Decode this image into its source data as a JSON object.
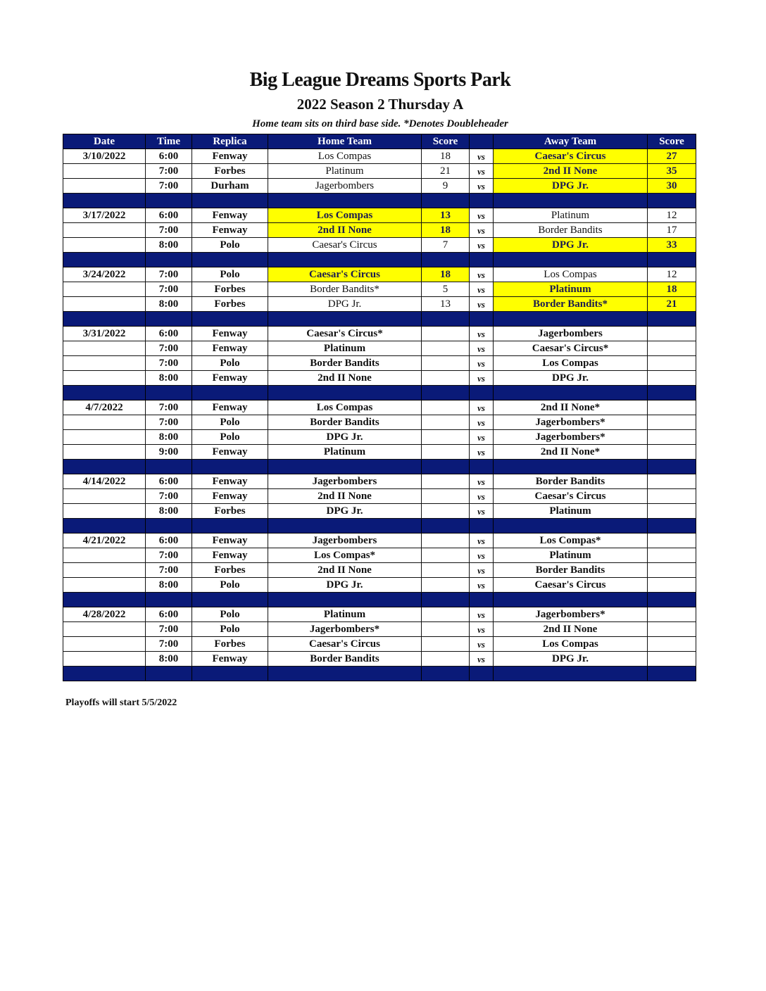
{
  "title": "Big League Dreams Sports Park",
  "subtitle": "2022 Season 2 Thursday A",
  "note": "Home team sits on third base side.  *Denotes Doubleheader",
  "headers": [
    "Date",
    "Time",
    "Replica",
    "Home Team",
    "Score",
    "",
    "Away Team",
    "Score"
  ],
  "vs_label": "vs",
  "highlight_color": "#ffff00",
  "header_color": "#0a1a78",
  "weeks": [
    {
      "date": "3/10/2022",
      "games": [
        {
          "time": "6:00",
          "field": "Fenway",
          "home": "Los Compas",
          "home_score": "18",
          "away": "Caesar's Circus",
          "away_score": "27",
          "winner": "away"
        },
        {
          "time": "7:00",
          "field": "Forbes",
          "home": "Platinum",
          "home_score": "21",
          "away": "2nd II None",
          "away_score": "35",
          "winner": "away"
        },
        {
          "time": "7:00",
          "field": "Durham",
          "home": "Jagerbombers",
          "home_score": "9",
          "away": "DPG Jr.",
          "away_score": "30",
          "winner": "away"
        }
      ]
    },
    {
      "date": "3/17/2022",
      "games": [
        {
          "time": "6:00",
          "field": "Fenway",
          "home": "Los Compas",
          "home_score": "13",
          "away": "Platinum",
          "away_score": "12",
          "winner": "home"
        },
        {
          "time": "7:00",
          "field": "Fenway",
          "home": "2nd II None",
          "home_score": "18",
          "away": "Border Bandits",
          "away_score": "17",
          "winner": "home"
        },
        {
          "time": "8:00",
          "field": "Polo",
          "home": "Caesar's Circus",
          "home_score": "7",
          "away": "DPG Jr.",
          "away_score": "33",
          "winner": "away"
        }
      ]
    },
    {
      "date": "3/24/2022",
      "games": [
        {
          "time": "7:00",
          "field": "Polo",
          "home": "Caesar's Circus",
          "home_score": "18",
          "away": "Los Compas",
          "away_score": "12",
          "winner": "home"
        },
        {
          "time": "7:00",
          "field": "Forbes",
          "home": "Border Bandits*",
          "home_score": "5",
          "away": "Platinum",
          "away_score": "18",
          "winner": "away"
        },
        {
          "time": "8:00",
          "field": "Forbes",
          "home": "DPG Jr.",
          "home_score": "13",
          "away": "Border Bandits*",
          "away_score": "21",
          "winner": "away"
        }
      ]
    },
    {
      "date": "3/31/2022",
      "games": [
        {
          "time": "6:00",
          "field": "Fenway",
          "home": "Caesar's Circus*",
          "home_score": "",
          "away": "Jagerbombers",
          "away_score": "",
          "winner": null
        },
        {
          "time": "7:00",
          "field": "Fenway",
          "home": "Platinum",
          "home_score": "",
          "away": "Caesar's Circus*",
          "away_score": "",
          "winner": null
        },
        {
          "time": "7:00",
          "field": "Polo",
          "home": "Border Bandits",
          "home_score": "",
          "away": "Los Compas",
          "away_score": "",
          "winner": null
        },
        {
          "time": "8:00",
          "field": "Fenway",
          "home": "2nd II None",
          "home_score": "",
          "away": "DPG Jr.",
          "away_score": "",
          "winner": null
        }
      ]
    },
    {
      "date": "4/7/2022",
      "games": [
        {
          "time": "7:00",
          "field": "Fenway",
          "home": "Los Compas",
          "home_score": "",
          "away": "2nd II None*",
          "away_score": "",
          "winner": null
        },
        {
          "time": "7:00",
          "field": "Polo",
          "home": "Border Bandits",
          "home_score": "",
          "away": "Jagerbombers*",
          "away_score": "",
          "winner": null
        },
        {
          "time": "8:00",
          "field": "Polo",
          "home": "DPG Jr.",
          "home_score": "",
          "away": "Jagerbombers*",
          "away_score": "",
          "winner": null
        },
        {
          "time": "9:00",
          "field": "Fenway",
          "home": "Platinum",
          "home_score": "",
          "away": "2nd II None*",
          "away_score": "",
          "winner": null
        }
      ]
    },
    {
      "date": "4/14/2022",
      "games": [
        {
          "time": "6:00",
          "field": "Fenway",
          "home": "Jagerbombers",
          "home_score": "",
          "away": "Border Bandits",
          "away_score": "",
          "winner": null
        },
        {
          "time": "7:00",
          "field": "Fenway",
          "home": "2nd II None",
          "home_score": "",
          "away": "Caesar's Circus",
          "away_score": "",
          "winner": null
        },
        {
          "time": "8:00",
          "field": "Forbes",
          "home": "DPG Jr.",
          "home_score": "",
          "away": "Platinum",
          "away_score": "",
          "winner": null
        }
      ]
    },
    {
      "date": "4/21/2022",
      "games": [
        {
          "time": "6:00",
          "field": "Fenway",
          "home": "Jagerbombers",
          "home_score": "",
          "away": "Los Compas*",
          "away_score": "",
          "winner": null
        },
        {
          "time": "7:00",
          "field": "Fenway",
          "home": "Los Compas*",
          "home_score": "",
          "away": "Platinum",
          "away_score": "",
          "winner": null
        },
        {
          "time": "7:00",
          "field": "Forbes",
          "home": "2nd II None",
          "home_score": "",
          "away": "Border Bandits",
          "away_score": "",
          "winner": null
        },
        {
          "time": "8:00",
          "field": "Polo",
          "home": "DPG Jr.",
          "home_score": "",
          "away": "Caesar's Circus",
          "away_score": "",
          "winner": null
        }
      ]
    },
    {
      "date": "4/28/2022",
      "games": [
        {
          "time": "6:00",
          "field": "Polo",
          "home": "Platinum",
          "home_score": "",
          "away": "Jagerbombers*",
          "away_score": "",
          "winner": null
        },
        {
          "time": "7:00",
          "field": "Polo",
          "home": "Jagerbombers*",
          "home_score": "",
          "away": "2nd II None",
          "away_score": "",
          "winner": null
        },
        {
          "time": "7:00",
          "field": "Forbes",
          "home": "Caesar's Circus",
          "home_score": "",
          "away": "Los Compas",
          "away_score": "",
          "winner": null
        },
        {
          "time": "8:00",
          "field": "Fenway",
          "home": "Border Bandits",
          "home_score": "",
          "away": "DPG Jr.",
          "away_score": "",
          "winner": null
        }
      ]
    }
  ],
  "footer": "Playoffs will start 5/5/2022"
}
